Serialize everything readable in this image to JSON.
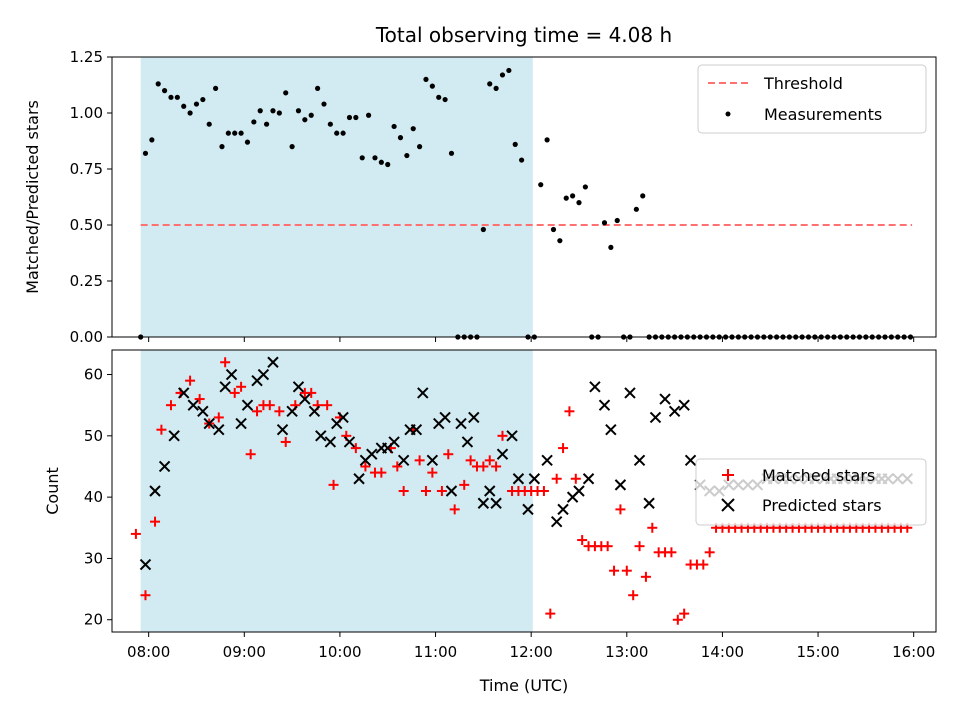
{
  "chart_data": [
    {
      "type": "scatter",
      "title": "Total observing time = 4.08 h",
      "xlabel": "",
      "ylabel": "Matched/Predicted stars",
      "ylim": [
        0,
        1.25
      ],
      "yticks": [
        0.0,
        0.25,
        0.5,
        0.75,
        1.0,
        1.25
      ],
      "ytick_labels": [
        "0.00",
        "0.25",
        "0.50",
        "0.75",
        "1.00",
        "1.25"
      ],
      "xlim": [
        "07:37",
        "16:14"
      ],
      "xticks": [
        "08:00",
        "09:00",
        "10:00",
        "11:00",
        "12:00",
        "13:00",
        "14:00",
        "15:00",
        "16:00"
      ],
      "xtick_labels_visible": false,
      "shaded_span": {
        "from": "07:55",
        "to": "12:01",
        "color": "#add8e6"
      },
      "threshold": {
        "name": "Threshold",
        "value": 0.5,
        "x_from": "07:55",
        "x_to": "15:59",
        "color": "#ff7070",
        "style": "dashed"
      },
      "legend": {
        "position": "top-right",
        "entries": [
          "Threshold",
          "Measurements"
        ]
      },
      "series": [
        {
          "name": "Measurements",
          "color": "#000000",
          "marker": "dot",
          "x": [
            "07:55",
            "07:58",
            "08:02",
            "08:06",
            "08:10",
            "08:14",
            "08:18",
            "08:22",
            "08:26",
            "08:30",
            "08:34",
            "08:38",
            "08:42",
            "08:46",
            "08:50",
            "08:54",
            "08:58",
            "09:02",
            "09:06",
            "09:10",
            "09:14",
            "09:18",
            "09:22",
            "09:26",
            "09:30",
            "09:34",
            "09:38",
            "09:42",
            "09:46",
            "09:50",
            "09:54",
            "09:58",
            "10:02",
            "10:06",
            "10:10",
            "10:14",
            "10:18",
            "10:22",
            "10:26",
            "10:30",
            "10:34",
            "10:38",
            "10:42",
            "10:46",
            "10:50",
            "10:54",
            "10:58",
            "11:02",
            "11:06",
            "11:10",
            "11:14",
            "11:18",
            "11:22",
            "11:26",
            "11:30",
            "11:34",
            "11:38",
            "11:42",
            "11:46",
            "11:50",
            "11:54",
            "11:58",
            "12:02",
            "12:06",
            "12:10",
            "12:14",
            "12:18",
            "12:22",
            "12:26",
            "12:30",
            "12:34",
            "12:38",
            "12:42",
            "12:46",
            "12:50",
            "12:54",
            "12:58",
            "13:02",
            "13:06",
            "13:10",
            "13:14",
            "13:18",
            "13:22",
            "13:26",
            "13:30",
            "13:34",
            "13:38",
            "13:42",
            "13:46",
            "13:50",
            "13:54",
            "13:58",
            "14:02",
            "14:06",
            "14:10",
            "14:14",
            "14:18",
            "14:22",
            "14:26",
            "14:30",
            "14:34",
            "14:38",
            "14:42",
            "14:46",
            "14:50",
            "14:54",
            "14:58",
            "15:02",
            "15:06",
            "15:10",
            "15:14",
            "15:18",
            "15:22",
            "15:26",
            "15:30",
            "15:34",
            "15:38",
            "15:42",
            "15:46",
            "15:50",
            "15:54",
            "15:58"
          ],
          "y": [
            0.0,
            0.82,
            0.88,
            1.13,
            1.1,
            1.07,
            1.07,
            1.03,
            1.0,
            1.04,
            1.06,
            0.95,
            1.11,
            0.85,
            0.91,
            0.91,
            0.91,
            0.87,
            0.96,
            1.01,
            0.95,
            1.01,
            1.0,
            1.09,
            0.85,
            1.01,
            0.97,
            0.99,
            1.11,
            1.04,
            0.95,
            0.91,
            0.91,
            0.98,
            0.98,
            0.8,
            0.99,
            0.8,
            0.78,
            0.77,
            0.94,
            0.89,
            0.81,
            0.93,
            0.85,
            1.15,
            1.12,
            1.07,
            1.06,
            0.82,
            0.0,
            0.0,
            0.0,
            0.0,
            0.48,
            1.13,
            1.11,
            1.17,
            1.19,
            0.86,
            0.79,
            0.0,
            0.0,
            0.68,
            0.88,
            0.48,
            0.43,
            0.62,
            0.63,
            0.6,
            0.67,
            0.0,
            0.0,
            0.51,
            0.4,
            0.52,
            0.0,
            0.0,
            0.57,
            0.63,
            0.0,
            0.0,
            0.0,
            0.0,
            0.0,
            0.0,
            0.0,
            0.0,
            0.0,
            0.0,
            0.0,
            0.0,
            0.0,
            0.0,
            0.0,
            0.0,
            0.0,
            0.0,
            0.0,
            0.0,
            0.0,
            0.0,
            0.0,
            0.0,
            0.0,
            0.0,
            0.0,
            0.0,
            0.0,
            0.0,
            0.0,
            0.0,
            0.0,
            0.0,
            0.0,
            0.0,
            0.0,
            0.0,
            0.0,
            0.0,
            0.0,
            0.0
          ],
          "note_x_spacing": "approx"
        }
      ]
    },
    {
      "type": "scatter",
      "title": "",
      "xlabel": "Time (UTC)",
      "ylabel": "Count",
      "ylim": [
        18,
        64
      ],
      "yticks": [
        20,
        30,
        40,
        50,
        60
      ],
      "ytick_labels": [
        "20",
        "30",
        "40",
        "50",
        "60"
      ],
      "xlim": [
        "07:37",
        "16:14"
      ],
      "xticks": [
        "08:00",
        "09:00",
        "10:00",
        "11:00",
        "12:00",
        "13:00",
        "14:00",
        "15:00",
        "16:00"
      ],
      "xtick_labels": [
        "08:00",
        "09:00",
        "10:00",
        "11:00",
        "12:00",
        "13:00",
        "14:00",
        "15:00",
        "16:00"
      ],
      "shaded_span": {
        "from": "07:55",
        "to": "12:01",
        "color": "#add8e6"
      },
      "legend": {
        "position": "center-right",
        "entries": [
          "Matched stars",
          "Predicted stars"
        ]
      },
      "series": [
        {
          "name": "Matched stars",
          "color": "#ff0000",
          "marker": "plus",
          "x": [
            "07:52",
            "07:58",
            "08:04",
            "08:08",
            "08:14",
            "08:20",
            "08:26",
            "08:32",
            "08:38",
            "08:44",
            "08:48",
            "08:54",
            "08:58",
            "09:04",
            "09:08",
            "09:12",
            "09:16",
            "09:22",
            "09:26",
            "09:32",
            "09:38",
            "09:42",
            "09:46",
            "09:52",
            "09:56",
            "10:00",
            "10:04",
            "10:10",
            "10:16",
            "10:22",
            "10:26",
            "10:32",
            "10:36",
            "10:40",
            "10:46",
            "10:50",
            "10:54",
            "10:58",
            "11:04",
            "11:08",
            "11:12",
            "11:18",
            "11:22",
            "11:26",
            "11:30",
            "11:34",
            "11:38",
            "11:42",
            "11:48",
            "11:52",
            "11:56",
            "12:00",
            "12:04",
            "12:08",
            "12:12",
            "12:16",
            "12:20",
            "12:24",
            "12:28",
            "12:32",
            "12:36",
            "12:40",
            "12:44",
            "12:48",
            "12:52",
            "12:56",
            "13:00",
            "13:04",
            "13:08",
            "13:12",
            "13:16",
            "13:20",
            "13:24",
            "13:28",
            "13:32",
            "13:36",
            "13:40",
            "13:44",
            "13:48",
            "13:52",
            "13:56",
            "14:00",
            "14:04",
            "14:08",
            "14:12",
            "14:16",
            "14:20",
            "14:24",
            "14:28",
            "14:32",
            "14:36",
            "14:40",
            "14:44",
            "14:48",
            "14:52",
            "14:56",
            "15:00",
            "15:04",
            "15:08",
            "15:12",
            "15:16",
            "15:20",
            "15:24",
            "15:28",
            "15:32",
            "15:36",
            "15:40",
            "15:44",
            "15:48",
            "15:52",
            "15:56"
          ],
          "y": [
            34,
            24,
            36,
            51,
            55,
            57,
            59,
            56,
            52,
            53,
            62,
            57,
            58,
            47,
            54,
            55,
            55,
            54,
            49,
            55,
            57,
            57,
            55,
            55,
            42,
            53,
            50,
            48,
            45,
            44,
            44,
            48,
            45,
            41,
            51,
            46,
            41,
            44,
            41,
            47,
            38,
            42,
            46,
            45,
            45,
            46,
            45,
            50,
            41,
            41,
            41,
            41,
            41,
            41,
            21,
            43,
            48,
            54,
            43,
            33,
            32,
            32,
            32,
            32,
            28,
            38,
            28,
            24,
            32,
            27,
            35,
            31,
            31,
            31,
            20,
            21,
            29,
            29,
            29,
            31,
            35,
            35,
            35,
            35,
            35,
            35,
            35,
            35,
            35,
            35,
            35,
            35,
            35,
            35,
            35,
            35,
            35,
            35,
            35,
            35,
            35,
            35,
            35,
            35,
            35,
            35,
            35,
            35,
            35,
            35,
            35
          ],
          "note_x_spacing": "approx"
        },
        {
          "name": "Predicted stars",
          "color": "#000000",
          "marker": "x",
          "x": [
            "07:58",
            "08:04",
            "08:10",
            "08:16",
            "08:22",
            "08:28",
            "08:34",
            "08:38",
            "08:44",
            "08:48",
            "08:52",
            "08:58",
            "09:02",
            "09:08",
            "09:12",
            "09:18",
            "09:24",
            "09:30",
            "09:34",
            "09:38",
            "09:44",
            "09:48",
            "09:54",
            "09:58",
            "10:02",
            "10:06",
            "10:12",
            "10:16",
            "10:20",
            "10:26",
            "10:30",
            "10:34",
            "10:40",
            "10:44",
            "10:48",
            "10:52",
            "10:58",
            "11:02",
            "11:06",
            "11:10",
            "11:16",
            "11:20",
            "11:24",
            "11:30",
            "11:34",
            "11:38",
            "11:42",
            "11:48",
            "11:52",
            "11:58",
            "12:02",
            "12:10",
            "12:16",
            "12:20",
            "12:26",
            "12:30",
            "12:36",
            "12:40",
            "12:46",
            "12:50",
            "12:56",
            "13:02",
            "13:08",
            "13:14",
            "13:18",
            "13:24",
            "13:30",
            "13:36",
            "13:40",
            "13:46",
            "13:52",
            "13:58",
            "14:04",
            "14:10",
            "14:16",
            "14:22",
            "14:28",
            "14:32",
            "14:38",
            "14:42",
            "14:48",
            "14:54",
            "14:58",
            "15:04",
            "15:08",
            "15:12",
            "15:16",
            "15:22",
            "15:26",
            "15:30",
            "15:36",
            "15:40",
            "15:44",
            "15:50",
            "15:56"
          ],
          "y": [
            29,
            41,
            45,
            50,
            57,
            55,
            54,
            52,
            51,
            58,
            60,
            52,
            55,
            59,
            60,
            62,
            51,
            54,
            58,
            56,
            54,
            50,
            49,
            52,
            53,
            49,
            43,
            46,
            47,
            48,
            48,
            49,
            46,
            51,
            51,
            57,
            46,
            52,
            53,
            41,
            52,
            49,
            53,
            39,
            41,
            39,
            47,
            50,
            43,
            38,
            43,
            46,
            36,
            38,
            40,
            41,
            43,
            58,
            55,
            51,
            42,
            57,
            46,
            39,
            53,
            56,
            54,
            55,
            46,
            42,
            41,
            41,
            42,
            42,
            42,
            42,
            43,
            43,
            43,
            43,
            43,
            43,
            43,
            43,
            43,
            43,
            43,
            43,
            43,
            43,
            43,
            43,
            43,
            43,
            43
          ],
          "note_x_spacing": "approx"
        }
      ]
    }
  ]
}
